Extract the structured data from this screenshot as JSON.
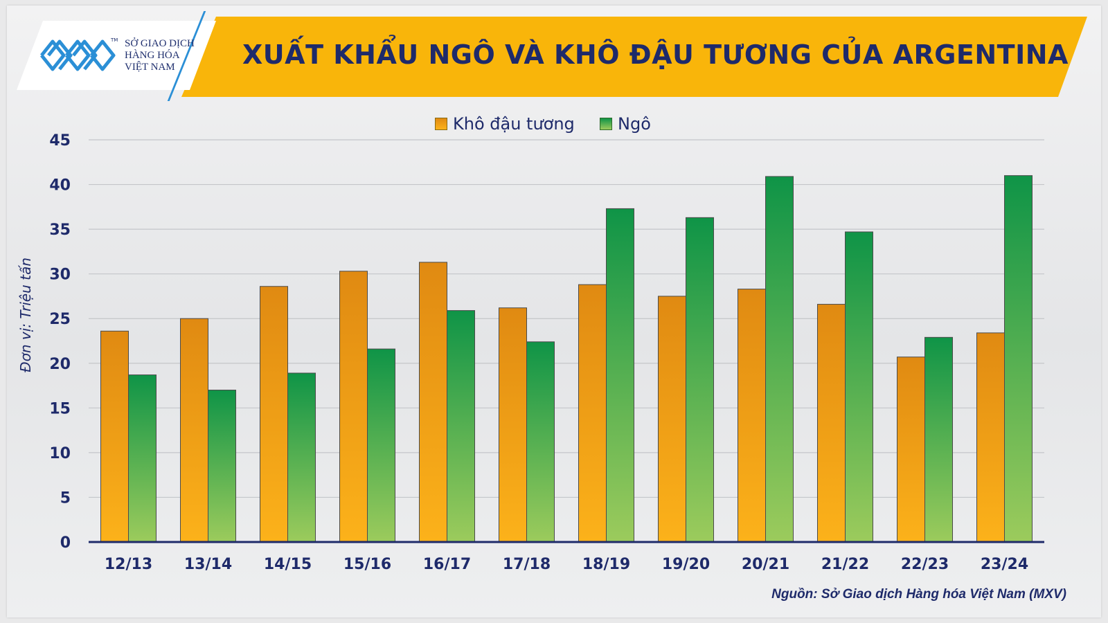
{
  "header": {
    "title": "XUẤT KHẨU NGÔ VÀ KHÔ ĐẬU TƯƠNG CỦA ARGENTINA",
    "logo_lines": [
      "SỞ GIAO DỊCH",
      "HÀNG HÓA",
      "VIỆT NAM"
    ],
    "logo_mark": "TM"
  },
  "colors": {
    "banner": "#f9b50a",
    "title_text": "#1e2a6a",
    "soybean_meal_top": "#e08a12",
    "soybean_meal_bottom": "#fcb21a",
    "corn_top": "#0f9447",
    "corn_bottom": "#9ccb5c"
  },
  "chart_data": {
    "type": "bar",
    "title": "XUẤT KHẨU NGÔ VÀ KHÔ ĐẬU TƯƠNG CỦA ARGENTINA",
    "ylabel": "Đơn vị: Triệu tấn",
    "xlabel": "",
    "ylim": [
      0,
      45
    ],
    "yticks": [
      "0",
      "5",
      "10",
      "15",
      "20",
      "25",
      "30",
      "35",
      "40",
      "45"
    ],
    "grid": true,
    "legend_position": "top-center",
    "categories": [
      "12/13",
      "13/14",
      "14/15",
      "15/16",
      "16/17",
      "17/18",
      "18/19",
      "19/20",
      "20/21",
      "21/22",
      "22/23",
      "23/24"
    ],
    "series": [
      {
        "name": "Khô đậu tương",
        "values": [
          23.6,
          25.0,
          28.6,
          30.3,
          31.3,
          26.2,
          28.8,
          27.5,
          28.3,
          26.6,
          20.7,
          23.4
        ]
      },
      {
        "name": "Ngô",
        "values": [
          18.7,
          17.0,
          18.9,
          21.6,
          25.9,
          22.4,
          37.3,
          36.3,
          40.9,
          34.7,
          22.9,
          41.0
        ]
      }
    ],
    "source": "Nguồn: Sở Giao dịch Hàng hóa Việt Nam (MXV)"
  }
}
